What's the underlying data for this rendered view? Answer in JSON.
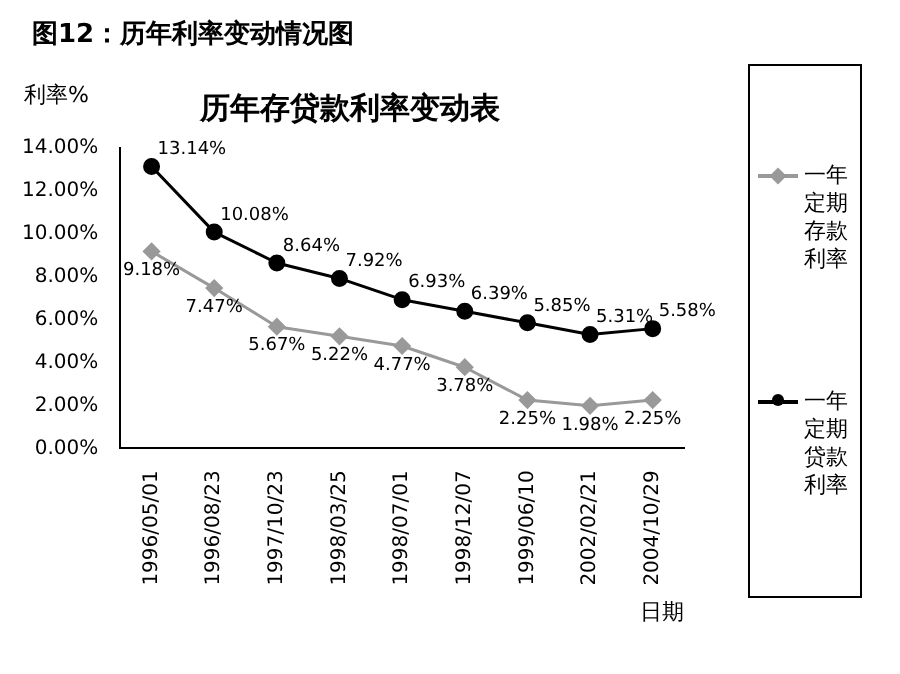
{
  "chart_data": {
    "type": "line",
    "title": "图12：历年利率变动情况图",
    "subtitle": "历年存贷款利率变动表",
    "ylabel": "利率%",
    "xlabel": "日期",
    "categories": [
      "1996/05/01",
      "1996/08/23",
      "1997/10/23",
      "1998/03/25",
      "1998/07/01",
      "1998/12/07",
      "1999/06/10",
      "2002/02/21",
      "2004/10/29"
    ],
    "series": [
      {
        "name": "一年定期存款利率",
        "color": "#999999",
        "marker": "diamond",
        "values": [
          9.18,
          7.47,
          5.67,
          5.22,
          4.77,
          3.78,
          2.25,
          1.98,
          2.25
        ],
        "value_labels": [
          "9.18%",
          "7.47%",
          "5.67%",
          "5.22%",
          "4.77%",
          "3.78%",
          "2.25%",
          "1.98%",
          "2.25%"
        ]
      },
      {
        "name": "一年定期贷款利率",
        "color": "#000000",
        "marker": "circle",
        "values": [
          13.14,
          10.08,
          8.64,
          7.92,
          6.93,
          6.39,
          5.85,
          5.31,
          5.58
        ],
        "value_labels": [
          "13.14%",
          "10.08%",
          "8.64%",
          "7.92%",
          "6.93%",
          "6.39%",
          "5.85%",
          "5.31%",
          "5.58%"
        ]
      }
    ],
    "ylim": [
      0,
      14
    ],
    "yticks": [
      {
        "value": 0,
        "label": "0.00%"
      },
      {
        "value": 2,
        "label": "2.00%"
      },
      {
        "value": 4,
        "label": "4.00%"
      },
      {
        "value": 6,
        "label": "6.00%"
      },
      {
        "value": 8,
        "label": "8.00%"
      },
      {
        "value": 10,
        "label": "10.00%"
      },
      {
        "value": 12,
        "label": "12.00%"
      },
      {
        "value": 14,
        "label": "14.00%"
      }
    ],
    "legend": "right"
  }
}
